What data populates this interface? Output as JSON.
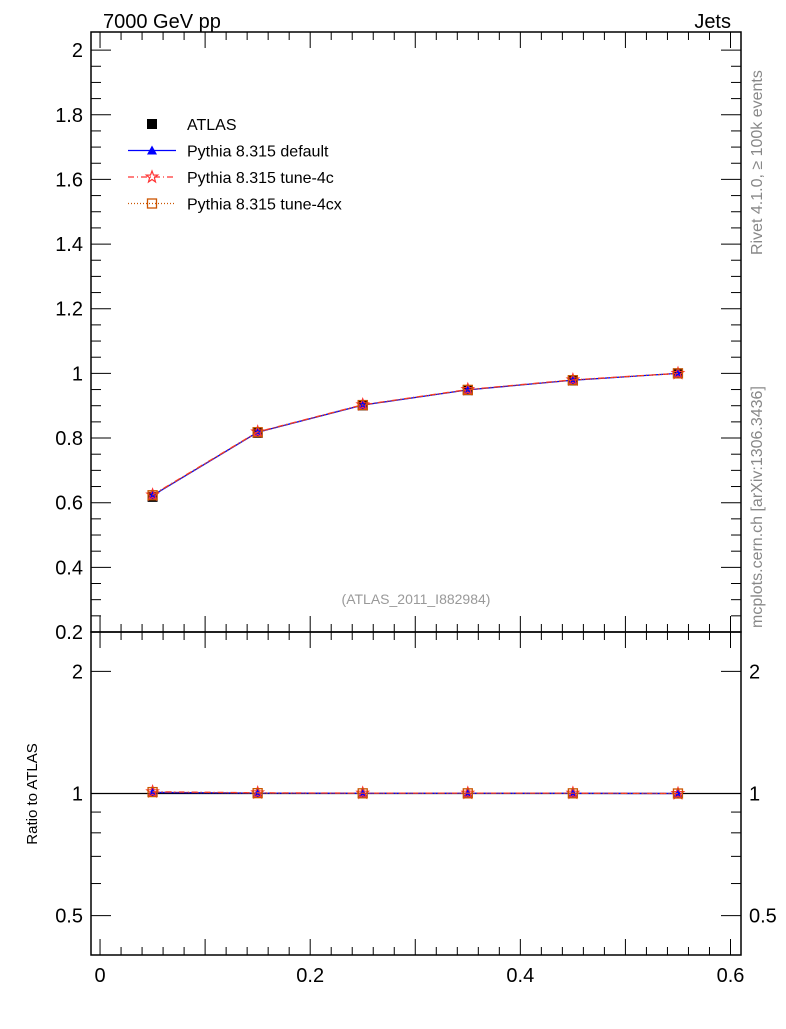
{
  "header": {
    "left": "7000 GeV pp",
    "right": "Jets"
  },
  "side_labels": {
    "rivet": "Rivet 4.1.0, ≥ 100k events",
    "mcplots": "mcplots.cern.ch [arXiv:1306.3436]"
  },
  "analysis_id": "(ATLAS_2011_I882984)",
  "chart_data": [
    {
      "type": "line",
      "panel": "main",
      "x": [
        0.05,
        0.15,
        0.25,
        0.35,
        0.45,
        0.55
      ],
      "xlim": [
        -0.0086,
        0.61
      ],
      "ylim": [
        0.2,
        2.056
      ],
      "yscale": "linear",
      "yticks": [
        0.2,
        0.4,
        0.6,
        0.8,
        1,
        1.2,
        1.4,
        1.6,
        1.8,
        2
      ],
      "ytick_labels": [
        "0.2",
        "0.4",
        "0.6",
        "0.8",
        "1",
        "1.2",
        "1.4",
        "1.6",
        "1.8",
        "2"
      ],
      "legend_position": "top-left",
      "series": [
        {
          "name": "ATLAS",
          "color": "#000000",
          "marker": "square",
          "values": [
            0.618,
            0.816,
            0.901,
            0.948,
            0.978,
            1.0
          ]
        },
        {
          "name": "Pythia 8.315 default",
          "color": "#0000ff",
          "marker": "triangle",
          "dash": "",
          "values": [
            0.622,
            0.818,
            0.902,
            0.949,
            0.979,
            1.0
          ]
        },
        {
          "name": "Pythia 8.315 tune-4c",
          "color": "#ff3333",
          "marker": "star",
          "dash": "6,3,1,3",
          "values": [
            0.624,
            0.819,
            0.903,
            0.95,
            0.98,
            1.0
          ]
        },
        {
          "name": "Pythia 8.315 tune-4cx",
          "color": "#cc5500",
          "marker": "open-square",
          "dash": "1,2",
          "values": [
            0.623,
            0.818,
            0.902,
            0.949,
            0.979,
            1.0
          ]
        }
      ]
    },
    {
      "type": "line",
      "panel": "ratio",
      "ylabel": "Ratio to ATLAS",
      "x": [
        0.05,
        0.15,
        0.25,
        0.35,
        0.45,
        0.55
      ],
      "xlim": [
        -0.0086,
        0.61
      ],
      "xticks": [
        0,
        0.2,
        0.4,
        0.6
      ],
      "xtick_labels": [
        "0",
        "0.2",
        "0.4",
        "0.6"
      ],
      "ylim": [
        0.4,
        2.5
      ],
      "yscale": "log",
      "yticks": [
        0.5,
        1,
        2
      ],
      "ytick_labels": [
        "0.5",
        "1",
        "2"
      ],
      "series": [
        {
          "name": "Pythia 8.315 default",
          "color": "#0000ff",
          "marker": "triangle",
          "dash": "",
          "values": [
            1.006,
            1.002,
            1.001,
            1.001,
            1.001,
            1.0
          ]
        },
        {
          "name": "Pythia 8.315 tune-4c",
          "color": "#ff3333",
          "marker": "star",
          "dash": "6,3,1,3",
          "values": [
            1.01,
            1.004,
            1.002,
            1.002,
            1.002,
            1.0
          ]
        },
        {
          "name": "Pythia 8.315 tune-4cx",
          "color": "#cc5500",
          "marker": "open-square",
          "dash": "1,2",
          "values": [
            1.008,
            1.002,
            1.001,
            1.001,
            1.001,
            1.0
          ]
        }
      ]
    }
  ]
}
